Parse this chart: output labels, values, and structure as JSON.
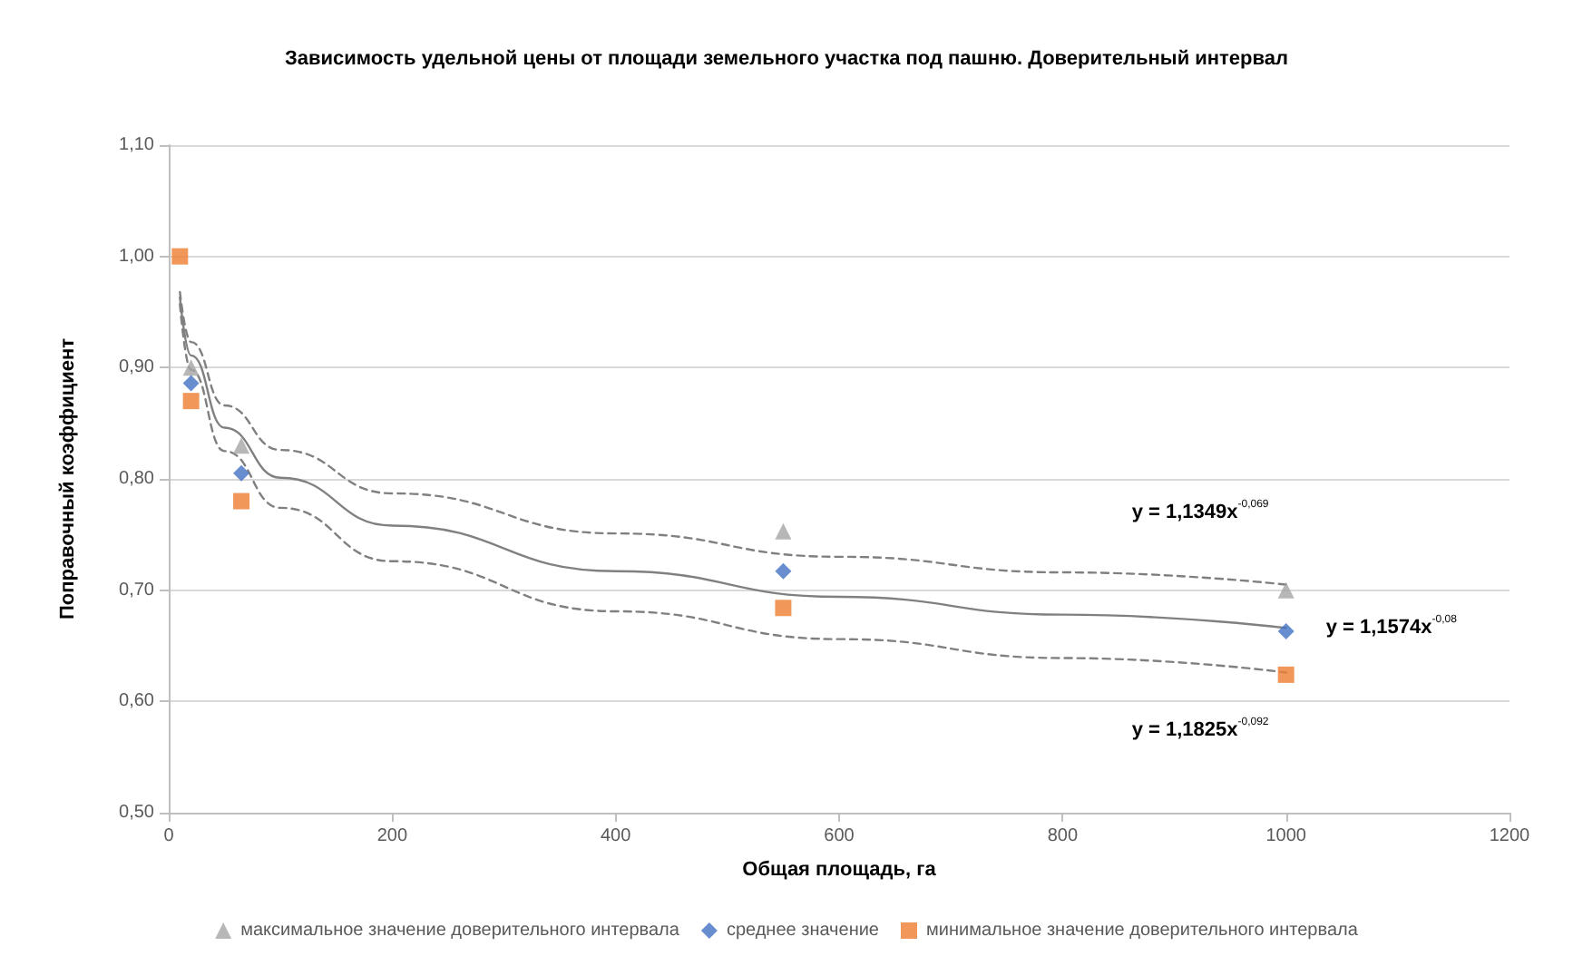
{
  "chart_data": {
    "type": "scatter",
    "title": "Зависимость удельной цены от площади земельного участка под пашню. Доверительный интервал",
    "xlabel": "Общая площадь, га",
    "ylabel": "Поправочный коэффициент",
    "xlim": [
      0,
      1200
    ],
    "xticks": [
      0,
      200,
      400,
      600,
      800,
      1000,
      1200
    ],
    "ylim": [
      0.5,
      1.1
    ],
    "yticks": [
      {
        "value": 0.5,
        "label": "0,50"
      },
      {
        "value": 0.6,
        "label": "0,60"
      },
      {
        "value": 0.7,
        "label": "0,70"
      },
      {
        "value": 0.8,
        "label": "0,80"
      },
      {
        "value": 0.9,
        "label": "0,90"
      },
      {
        "value": 1.0,
        "label": "1,00"
      },
      {
        "value": 1.1,
        "label": "1,10"
      }
    ],
    "grid": "y",
    "legend": "bottom",
    "series": [
      {
        "name": "максимальное значение доверительного интервала",
        "color": "#a5a5a5",
        "marker": "triangle",
        "x": [
          20,
          65,
          550,
          1000
        ],
        "values": [
          0.9,
          0.83,
          0.753,
          0.7
        ]
      },
      {
        "name": "среднее значение",
        "color": "#4472c4",
        "marker": "diamond",
        "x": [
          20,
          65,
          550,
          1000
        ],
        "values": [
          0.886,
          0.805,
          0.717,
          0.663
        ]
      },
      {
        "name": "минимальное значение доверительного интервала",
        "color": "#ed7d31",
        "marker": "square",
        "x": [
          10,
          20,
          65,
          550,
          1000
        ],
        "values": [
          1.0,
          0.87,
          0.78,
          0.684,
          0.624
        ]
      },
      {
        "type": "line",
        "color": "#808080",
        "line_style": "dashed",
        "marker": "none",
        "x": [
          10,
          20,
          50,
          100,
          200,
          400,
          600,
          800,
          1000
        ],
        "values": [
          0.968,
          0.923,
          0.866,
          0.826,
          0.787,
          0.751,
          0.73,
          0.716,
          0.705
        ]
      },
      {
        "type": "line",
        "color": "#808080",
        "line_style": "solid",
        "marker": "none",
        "x": [
          10,
          20,
          50,
          100,
          200,
          400,
          600,
          800,
          1000
        ],
        "values": [
          0.963,
          0.911,
          0.846,
          0.801,
          0.758,
          0.717,
          0.694,
          0.678,
          0.666
        ]
      },
      {
        "type": "line",
        "color": "#808080",
        "line_style": "dashed",
        "marker": "none",
        "x": [
          10,
          20,
          50,
          100,
          200,
          400,
          600,
          800,
          1000
        ],
        "values": [
          0.957,
          0.898,
          0.825,
          0.774,
          0.726,
          0.681,
          0.656,
          0.639,
          0.626
        ]
      }
    ],
    "annotations": [
      "y = 1,1349x$^{-0,069}$",
      "y = 1,1574x$^{-0,08}$",
      "y = 1,1825x$^{-0,092}$"
    ]
  }
}
